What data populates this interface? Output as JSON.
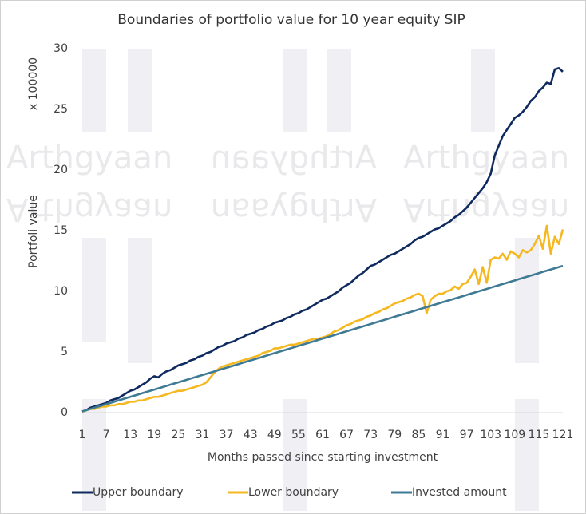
{
  "chart_data": {
    "type": "line",
    "title": "Boundaries of portfolio value for 10 year equity SIP",
    "y_axis_label": "Portfoli value",
    "y_scale_label": "x 100000",
    "x_axis_label": "Months passed since starting investment",
    "watermark": "Arthgyaan",
    "grid": false,
    "legend": "bottom",
    "x": [
      1,
      2,
      3,
      4,
      5,
      6,
      7,
      8,
      9,
      10,
      11,
      12,
      13,
      14,
      15,
      16,
      17,
      18,
      19,
      20,
      21,
      22,
      23,
      24,
      25,
      26,
      27,
      28,
      29,
      30,
      31,
      32,
      33,
      34,
      35,
      36,
      37,
      38,
      39,
      40,
      41,
      42,
      43,
      44,
      45,
      46,
      47,
      48,
      49,
      50,
      51,
      52,
      53,
      54,
      55,
      56,
      57,
      58,
      59,
      60,
      61,
      62,
      63,
      64,
      65,
      66,
      67,
      68,
      69,
      70,
      71,
      72,
      73,
      74,
      75,
      76,
      77,
      78,
      79,
      80,
      81,
      82,
      83,
      84,
      85,
      86,
      87,
      88,
      89,
      90,
      91,
      92,
      93,
      94,
      95,
      96,
      97,
      98,
      99,
      100,
      101,
      102,
      103,
      104,
      105,
      106,
      107,
      108,
      109,
      110,
      111,
      112,
      113,
      114,
      115,
      116,
      117,
      118,
      119,
      120,
      121
    ],
    "xlim": [
      1,
      121
    ],
    "xticks": [
      1,
      7,
      13,
      19,
      25,
      31,
      37,
      43,
      49,
      55,
      61,
      67,
      73,
      79,
      85,
      91,
      97,
      103,
      109,
      115,
      121
    ],
    "ylim": [
      0,
      30
    ],
    "yticks": [
      0,
      5,
      10,
      15,
      20,
      25,
      30
    ],
    "series": [
      {
        "name": "Upper boundary",
        "color": "#0e2a5e",
        "values": [
          0.1,
          0.2,
          0.4,
          0.5,
          0.6,
          0.7,
          0.8,
          1.0,
          1.1,
          1.2,
          1.4,
          1.6,
          1.8,
          1.9,
          2.1,
          2.3,
          2.5,
          2.8,
          3.0,
          2.9,
          3.2,
          3.4,
          3.5,
          3.7,
          3.9,
          4.0,
          4.1,
          4.3,
          4.4,
          4.6,
          4.7,
          4.9,
          5.0,
          5.2,
          5.4,
          5.5,
          5.7,
          5.8,
          5.9,
          6.1,
          6.2,
          6.4,
          6.5,
          6.6,
          6.8,
          6.9,
          7.1,
          7.2,
          7.4,
          7.5,
          7.6,
          7.8,
          7.9,
          8.1,
          8.2,
          8.4,
          8.5,
          8.7,
          8.9,
          9.1,
          9.3,
          9.4,
          9.6,
          9.8,
          10.0,
          10.3,
          10.5,
          10.7,
          11.0,
          11.3,
          11.5,
          11.8,
          12.1,
          12.2,
          12.4,
          12.6,
          12.8,
          13.0,
          13.1,
          13.3,
          13.5,
          13.7,
          13.9,
          14.2,
          14.4,
          14.5,
          14.7,
          14.9,
          15.1,
          15.2,
          15.4,
          15.6,
          15.8,
          16.1,
          16.3,
          16.6,
          16.9,
          17.3,
          17.7,
          18.1,
          18.5,
          19.0,
          19.7,
          21.2,
          22.0,
          22.8,
          23.3,
          23.8,
          24.3,
          24.5,
          24.8,
          25.2,
          25.7,
          26.0,
          26.5,
          26.8,
          27.2,
          27.1,
          28.3,
          28.4,
          28.1
        ]
      },
      {
        "name": "Lower boundary",
        "color": "#f5b820",
        "values": [
          0.1,
          0.2,
          0.3,
          0.3,
          0.4,
          0.5,
          0.5,
          0.6,
          0.6,
          0.7,
          0.7,
          0.8,
          0.9,
          0.9,
          1.0,
          1.0,
          1.1,
          1.2,
          1.3,
          1.3,
          1.4,
          1.5,
          1.6,
          1.7,
          1.8,
          1.8,
          1.9,
          2.0,
          2.1,
          2.2,
          2.3,
          2.5,
          2.9,
          3.3,
          3.6,
          3.8,
          3.9,
          4.0,
          4.1,
          4.2,
          4.3,
          4.4,
          4.5,
          4.6,
          4.7,
          4.9,
          5.0,
          5.1,
          5.3,
          5.3,
          5.4,
          5.5,
          5.6,
          5.6,
          5.7,
          5.8,
          5.9,
          6.0,
          6.1,
          6.1,
          6.2,
          6.3,
          6.5,
          6.7,
          6.8,
          7.0,
          7.2,
          7.3,
          7.5,
          7.6,
          7.7,
          7.9,
          8.0,
          8.2,
          8.3,
          8.5,
          8.6,
          8.8,
          9.0,
          9.1,
          9.2,
          9.4,
          9.5,
          9.7,
          9.8,
          9.6,
          8.2,
          9.3,
          9.6,
          9.8,
          9.8,
          10.0,
          10.1,
          10.4,
          10.2,
          10.6,
          10.7,
          11.2,
          11.8,
          10.6,
          12.0,
          10.7,
          12.6,
          12.8,
          12.7,
          13.1,
          12.6,
          13.3,
          13.1,
          12.8,
          13.4,
          13.2,
          13.4,
          13.9,
          14.6,
          13.5,
          15.4,
          13.1,
          14.5,
          13.9,
          15.1
        ]
      },
      {
        "name": "Invested amount",
        "color": "#3f7a94",
        "values": [
          0.1,
          0.2,
          0.3,
          0.4,
          0.5,
          0.6,
          0.7,
          0.8,
          0.9,
          1.0,
          1.1,
          1.2,
          1.3,
          1.4,
          1.5,
          1.6,
          1.7,
          1.8,
          1.9,
          2.0,
          2.1,
          2.2,
          2.3,
          2.4,
          2.5,
          2.6,
          2.7,
          2.8,
          2.9,
          3.0,
          3.1,
          3.2,
          3.3,
          3.4,
          3.5,
          3.6,
          3.7,
          3.8,
          3.9,
          4.0,
          4.1,
          4.2,
          4.3,
          4.4,
          4.5,
          4.6,
          4.7,
          4.8,
          4.9,
          5.0,
          5.1,
          5.2,
          5.3,
          5.4,
          5.5,
          5.6,
          5.7,
          5.8,
          5.9,
          6.0,
          6.1,
          6.2,
          6.3,
          6.4,
          6.5,
          6.6,
          6.7,
          6.8,
          6.9,
          7.0,
          7.1,
          7.2,
          7.3,
          7.4,
          7.5,
          7.6,
          7.7,
          7.8,
          7.9,
          8.0,
          8.1,
          8.2,
          8.3,
          8.4,
          8.5,
          8.6,
          8.7,
          8.8,
          8.9,
          9.0,
          9.1,
          9.2,
          9.3,
          9.4,
          9.5,
          9.6,
          9.7,
          9.8,
          9.9,
          10.0,
          10.1,
          10.2,
          10.3,
          10.4,
          10.5,
          10.6,
          10.7,
          10.8,
          10.9,
          11.0,
          11.1,
          11.2,
          11.3,
          11.4,
          11.5,
          11.6,
          11.7,
          11.8,
          11.9,
          12.0,
          12.1
        ]
      }
    ]
  }
}
